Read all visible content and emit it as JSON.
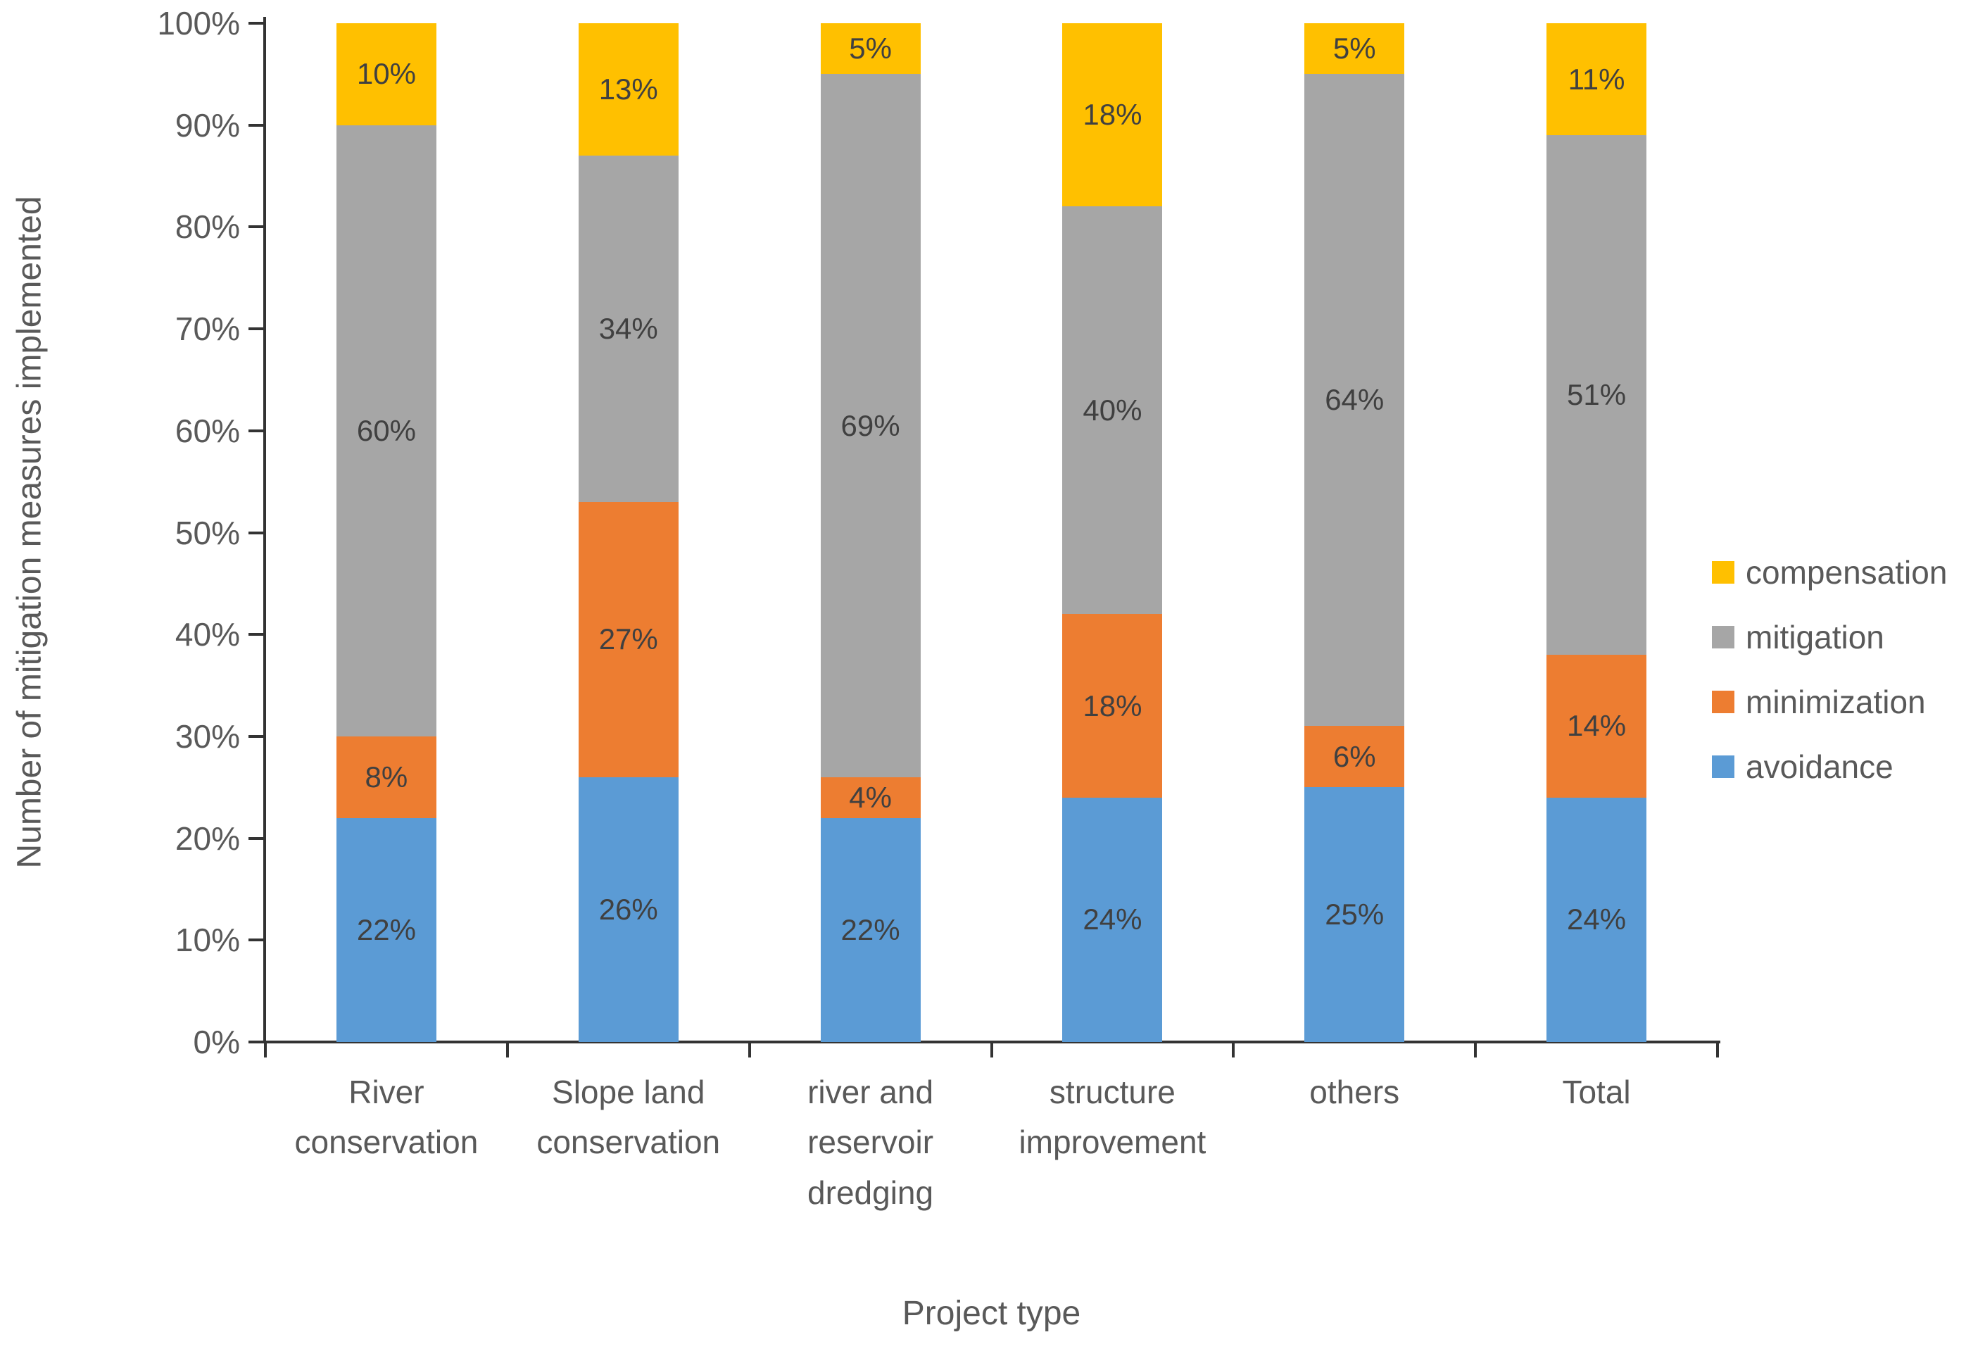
{
  "y_axis": {
    "title": "Number of mitigation measures implemented",
    "tick_labels": [
      "0%",
      "10%",
      "20%",
      "30%",
      "40%",
      "50%",
      "60%",
      "70%",
      "80%",
      "90%",
      "100%"
    ],
    "min": 0,
    "max": 100,
    "step": 10
  },
  "x_axis": {
    "title": "Project type",
    "category_lines": [
      "River\nconservation",
      "Slope land\nconservation",
      "river and\nreservoir\ndredging",
      "structure\nimprovement",
      "others",
      "Total"
    ]
  },
  "legend": [
    {
      "label": "compensation",
      "color": "#FFC000"
    },
    {
      "label": "mitigation",
      "color": "#A6A6A6"
    },
    {
      "label": "minimization",
      "color": "#ED7D31"
    },
    {
      "label": "avoidance",
      "color": "#5B9BD5"
    }
  ],
  "chart_data": {
    "type": "bar",
    "stacked": true,
    "percent_stacked": true,
    "title": "",
    "xlabel": "Project type",
    "ylabel": "Number of mitigation measures implemented",
    "ylim": [
      0,
      100
    ],
    "grid": false,
    "legend_position": "right",
    "categories": [
      "River conservation",
      "Slope land conservation",
      "river and reservoir dredging",
      "structure improvement",
      "others",
      "Total"
    ],
    "series": [
      {
        "name": "avoidance",
        "color": "#5B9BD5",
        "values": [
          22,
          26,
          22,
          24,
          25,
          24
        ]
      },
      {
        "name": "minimization",
        "color": "#ED7D31",
        "values": [
          8,
          27,
          4,
          18,
          6,
          14
        ]
      },
      {
        "name": "mitigation",
        "color": "#A6A6A6",
        "values": [
          60,
          34,
          69,
          40,
          64,
          51
        ]
      },
      {
        "name": "compensation",
        "color": "#FFC000",
        "values": [
          10,
          13,
          5,
          18,
          5,
          11
        ]
      }
    ],
    "data_label_format": "{value}%"
  },
  "colors": {
    "axis": "#333333",
    "tick_text": "#595959",
    "data_label": "#404040",
    "background": "#ffffff"
  }
}
